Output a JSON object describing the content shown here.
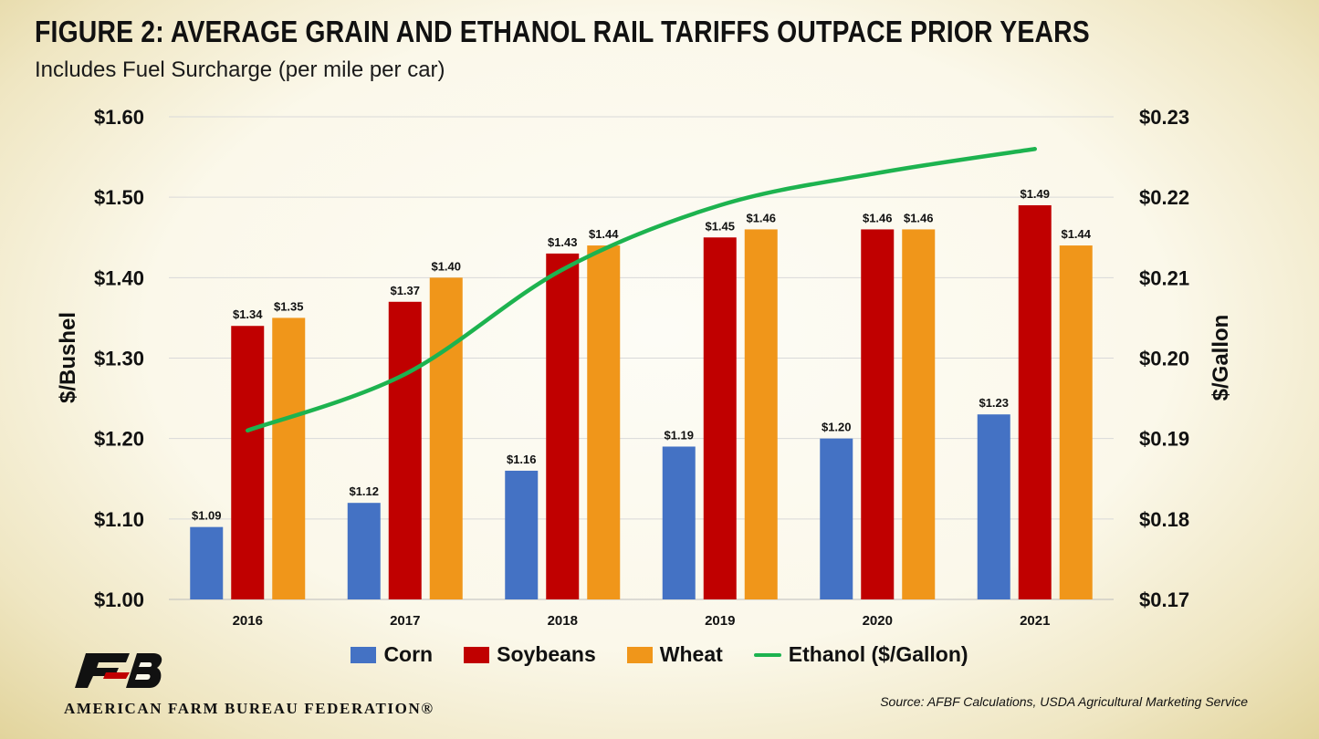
{
  "chart_data": {
    "type": "bar",
    "title": "FIGURE 2: AVERAGE GRAIN AND ETHANOL RAIL TARIFFS OUTPACE PRIOR YEARS",
    "subtitle": "Includes Fuel Surcharge (per mile per car)",
    "categories": [
      "2016",
      "2017",
      "2018",
      "2019",
      "2020",
      "2021"
    ],
    "series": [
      {
        "name": "Corn",
        "type": "bar",
        "axis": "left",
        "color": "#4472c4",
        "values": [
          1.09,
          1.12,
          1.16,
          1.19,
          1.2,
          1.23
        ],
        "labels": [
          "$1.09",
          "$1.12",
          "$1.16",
          "$1.19",
          "$1.20",
          "$1.23"
        ]
      },
      {
        "name": "Soybeans",
        "type": "bar",
        "axis": "left",
        "color": "#c00000",
        "values": [
          1.34,
          1.37,
          1.43,
          1.45,
          1.46,
          1.49
        ],
        "labels": [
          "$1.34",
          "$1.37",
          "$1.43",
          "$1.45",
          "$1.46",
          "$1.49"
        ]
      },
      {
        "name": "Wheat",
        "type": "bar",
        "axis": "left",
        "color": "#f0961a",
        "values": [
          1.35,
          1.4,
          1.44,
          1.46,
          1.46,
          1.44
        ],
        "labels": [
          "$1.35",
          "$1.40",
          "$1.44",
          "$1.46",
          "$1.46",
          "$1.44"
        ]
      },
      {
        "name": "Ethanol ($/Gallon)",
        "type": "line",
        "axis": "right",
        "color": "#1db34f",
        "values": [
          0.191,
          0.198,
          0.211,
          0.219,
          0.223,
          0.226
        ]
      }
    ],
    "ylabel": "$/Bushel",
    "y2label": "$/Gallon",
    "ylim": [
      1.0,
      1.6
    ],
    "y2lim": [
      0.17,
      0.23
    ],
    "yticks": [
      "$1.00",
      "$1.10",
      "$1.20",
      "$1.30",
      "$1.40",
      "$1.50",
      "$1.60"
    ],
    "y2ticks": [
      "$0.17",
      "$0.18",
      "$0.19",
      "$0.20",
      "$0.21",
      "$0.22",
      "$0.23"
    ],
    "grid": true,
    "legend_position": "bottom"
  },
  "logo": {
    "name": "AMERICAN FARM BUREAU FEDERATION®"
  },
  "source": "Source: AFBF Calculations, USDA Agricultural Marketing Service"
}
